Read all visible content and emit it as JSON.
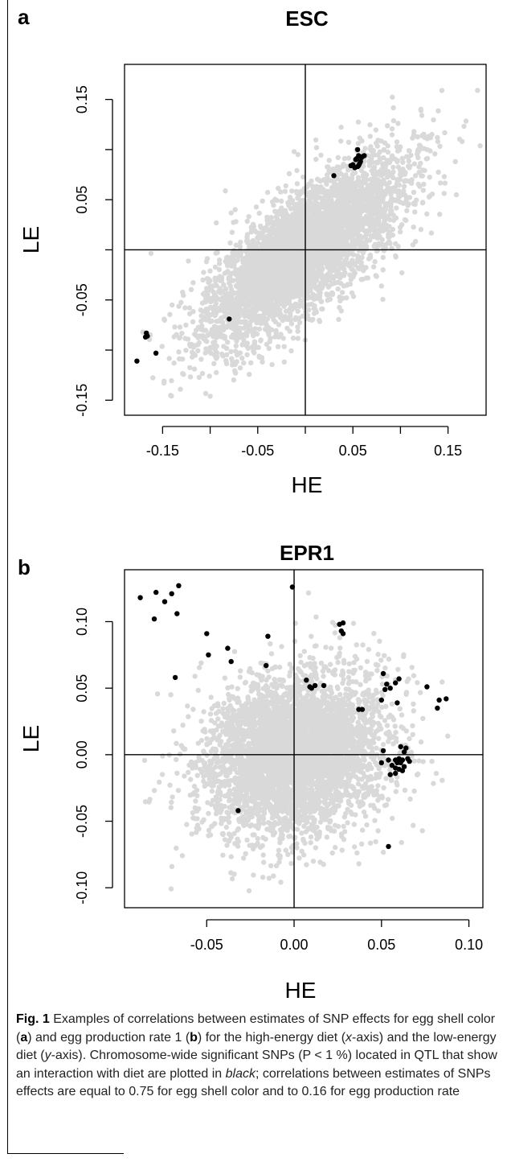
{
  "panels": [
    {
      "letter": "a"
    },
    {
      "letter": "b"
    }
  ],
  "chart_data": [
    {
      "type": "scatter",
      "title": "ESC",
      "xlabel": "HE",
      "ylabel": "LE",
      "xlim": [
        -0.19,
        0.19
      ],
      "ylim": [
        -0.165,
        0.185
      ],
      "xticks": [
        -0.15,
        -0.1,
        -0.05,
        0.0,
        0.05,
        0.1,
        0.15
      ],
      "xtick_labels": [
        "-0.15",
        "",
        "-0.05",
        "",
        "0.05",
        "",
        "0.15"
      ],
      "yticks": [
        -0.15,
        -0.1,
        -0.05,
        0.0,
        0.05,
        0.1,
        0.15
      ],
      "ytick_labels": [
        "-0.15",
        "",
        "-0.05",
        "",
        "0.05",
        "",
        "0.15"
      ],
      "reference_lines": {
        "x": 0,
        "y": 0
      },
      "background_points": {
        "color": "#d9d9d9",
        "correlation": 0.75
      },
      "highlight_color": "#000000",
      "series": [
        {
          "points": [
            [
              0.053,
              0.09
            ],
            [
              0.055,
              0.1
            ],
            [
              0.056,
              0.094
            ],
            [
              0.058,
              0.088
            ],
            [
              0.05,
              0.085
            ],
            [
              0.052,
              0.082
            ],
            [
              0.055,
              0.083
            ],
            [
              0.057,
              0.086
            ],
            [
              0.059,
              0.092
            ],
            [
              0.06,
              0.093
            ],
            [
              0.048,
              0.084
            ],
            [
              0.056,
              0.084
            ],
            [
              0.062,
              0.094
            ],
            [
              0.054,
              0.091
            ],
            [
              0.03,
              0.074
            ],
            [
              -0.08,
              -0.069
            ],
            [
              -0.167,
              -0.083
            ],
            [
              -0.166,
              -0.086
            ],
            [
              -0.168,
              -0.087
            ],
            [
              -0.157,
              -0.103
            ],
            [
              -0.177,
              -0.111
            ]
          ]
        }
      ]
    },
    {
      "type": "scatter",
      "title": "EPR1",
      "xlabel": "HE",
      "ylabel": "LE",
      "xlim": [
        -0.097,
        0.108
      ],
      "ylim": [
        -0.115,
        0.139
      ],
      "xticks": [
        -0.05,
        0.0,
        0.05,
        0.1
      ],
      "xtick_labels": [
        "-0.05",
        "0.00",
        "0.05",
        "0.10"
      ],
      "yticks": [
        -0.1,
        -0.05,
        0.0,
        0.05,
        0.1
      ],
      "ytick_labels": [
        "-0.10",
        "-0.05",
        "0.00",
        "0.05",
        "0.10"
      ],
      "reference_lines": {
        "x": 0,
        "y": 0
      },
      "background_points": {
        "color": "#d9d9d9",
        "correlation": 0.16
      },
      "highlight_color": "#000000",
      "series": [
        {
          "points": [
            [
              -0.088,
              0.118
            ],
            [
              -0.079,
              0.122
            ],
            [
              -0.074,
              0.115
            ],
            [
              -0.07,
              0.121
            ],
            [
              -0.066,
              0.127
            ],
            [
              -0.08,
              0.102
            ],
            [
              -0.067,
              0.106
            ],
            [
              -0.05,
              0.091
            ],
            [
              -0.038,
              0.08
            ],
            [
              -0.015,
              0.089
            ],
            [
              -0.049,
              0.075
            ],
            [
              -0.036,
              0.07
            ],
            [
              -0.016,
              0.067
            ],
            [
              -0.068,
              0.058
            ],
            [
              -0.001,
              0.126
            ],
            [
              0.026,
              0.098
            ],
            [
              0.028,
              0.099
            ],
            [
              0.027,
              0.093
            ],
            [
              0.028,
              0.091
            ],
            [
              0.007,
              0.056
            ],
            [
              0.009,
              0.051
            ],
            [
              0.01,
              0.05
            ],
            [
              0.012,
              0.052
            ],
            [
              0.017,
              0.052
            ],
            [
              0.037,
              0.034
            ],
            [
              0.039,
              0.034
            ],
            [
              0.051,
              0.061
            ],
            [
              0.053,
              0.053
            ],
            [
              0.055,
              0.05
            ],
            [
              0.052,
              0.049
            ],
            [
              0.058,
              0.054
            ],
            [
              0.06,
              0.057
            ],
            [
              0.05,
              0.041
            ],
            [
              0.059,
              0.039
            ],
            [
              0.076,
              0.051
            ],
            [
              0.083,
              0.041
            ],
            [
              0.087,
              0.042
            ],
            [
              0.082,
              0.035
            ],
            [
              0.051,
              0.003
            ],
            [
              0.054,
              -0.004
            ],
            [
              0.056,
              -0.008
            ],
            [
              0.058,
              -0.004
            ],
            [
              0.059,
              -0.006
            ],
            [
              0.06,
              -0.011
            ],
            [
              0.061,
              -0.006
            ],
            [
              0.062,
              -0.004
            ],
            [
              0.063,
              0.002
            ],
            [
              0.061,
              0.006
            ],
            [
              0.064,
              0.005
            ],
            [
              0.065,
              -0.003
            ],
            [
              0.066,
              -0.005
            ],
            [
              0.063,
              -0.009
            ],
            [
              0.058,
              -0.01
            ],
            [
              0.06,
              -0.003
            ],
            [
              0.062,
              -0.012
            ],
            [
              0.05,
              -0.006
            ],
            [
              0.055,
              -0.015
            ],
            [
              0.058,
              -0.014
            ],
            [
              -0.032,
              -0.042
            ],
            [
              0.054,
              -0.069
            ]
          ]
        }
      ]
    }
  ],
  "caption": {
    "label": "Fig. 1",
    "text_1": "  Examples of correlations between estimates of SNP effects for egg shell color (",
    "bold_a": "a",
    "text_2": ") and egg production rate 1 (",
    "bold_b": "b",
    "text_3": ") for the high-energy diet (",
    "italic_x": "x",
    "text_4": "-axis) and the low-energy diet (",
    "italic_y": "y",
    "text_5": "-axis). Chromosome-wide significant SNPs (P < 1 %) located in QTL that show an interaction with diet are plotted in ",
    "italic_black": "black",
    "text_6": "; correlations between estimates of SNPs effects are equal to 0.75 for egg shell color and to 0.16 for egg production rate"
  }
}
